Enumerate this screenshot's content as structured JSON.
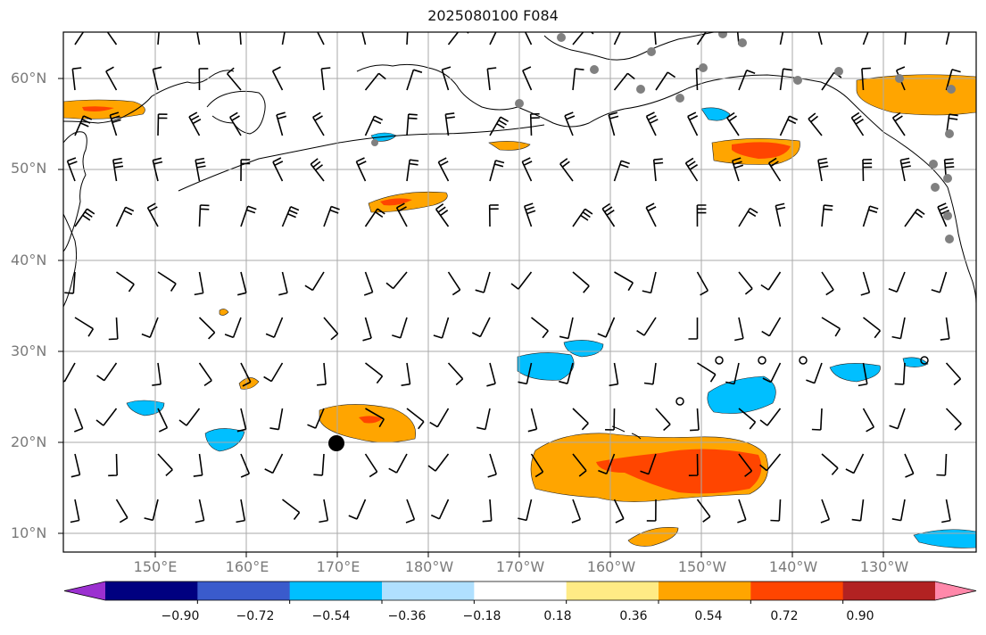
{
  "title": "2025080100 F084",
  "lat_labels": [
    "60°N",
    "50°N",
    "40°N",
    "30°N",
    "20°N",
    "10°N"
  ],
  "lon_labels": [
    "150°E",
    "160°E",
    "170°E",
    "180°W",
    "170°W",
    "160°W",
    "150°W",
    "140°W",
    "130°W"
  ],
  "colorbar": {
    "ticks": [
      "−0.90",
      "−0.72",
      "−0.54",
      "−0.36",
      "−0.18",
      "0.18",
      "0.36",
      "0.54",
      "0.72",
      "0.90"
    ],
    "colors": [
      "#9b30d0",
      "#000080",
      "#3a5bcc",
      "#00bfff",
      "#b0e0ff",
      "#ffffff",
      "#ffeb85",
      "#ffa500",
      "#ff4500",
      "#b22222",
      "#ff88aa"
    ]
  },
  "field_colors": {
    "orange": "#ffa500",
    "red_orange": "#ff4500",
    "cyan": "#00bfff",
    "light_blue": "#b0e0ff"
  }
}
